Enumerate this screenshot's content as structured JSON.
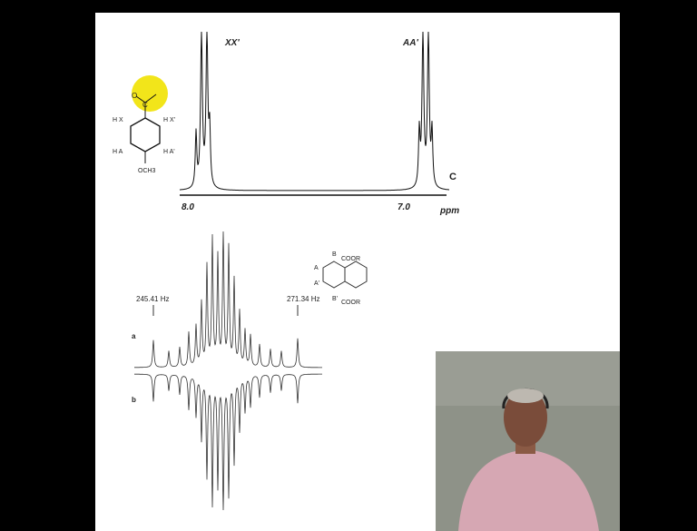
{
  "slide": {
    "top_spectrum": {
      "label_left": "XX'",
      "label_right": "AA'",
      "panel_label": "C",
      "tick_left": "8.0",
      "tick_right": "7.0",
      "unit": "ppm"
    },
    "top_molecule": {
      "atoms": [
        "O",
        "C",
        "H X",
        "H X'",
        "H A",
        "H A'",
        "OCH3"
      ]
    },
    "bottom_spectrum": {
      "freq_left": "245.41 Hz",
      "freq_right": "271.34 Hz",
      "trace_a": "a",
      "trace_b": "b"
    },
    "bottom_molecule": {
      "atoms": [
        "B",
        "A",
        "A'",
        "B'",
        "COOR",
        "COOR"
      ]
    }
  }
}
